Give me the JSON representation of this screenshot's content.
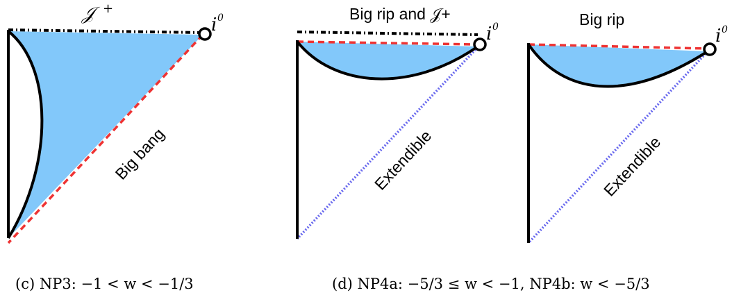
{
  "panel_c": {
    "scri_label": "𝒥",
    "scri_sup": "+",
    "i0_label": "i",
    "i0_sup": "0",
    "bigbang_label": "Big bang",
    "caption": "(c) NP3: −1 < w < −1/3"
  },
  "panel_d1": {
    "title": "Big rip and 𝒥+",
    "i0_label": "i",
    "i0_sup": "0",
    "extendible_label": "Extendible"
  },
  "panel_d2": {
    "title": "Big rip",
    "i0_label": "i",
    "i0_sup": "0",
    "extendible_label": "Extendible"
  },
  "caption_d": "(d) NP4a: −5/3 ≤ w < −1, NP4b: w < −5/3",
  "colors": {
    "region_fill": "#82c8fa",
    "null_red": "#ee3333",
    "dotted_blue": "#6666ee",
    "scri_black": "#000000"
  }
}
